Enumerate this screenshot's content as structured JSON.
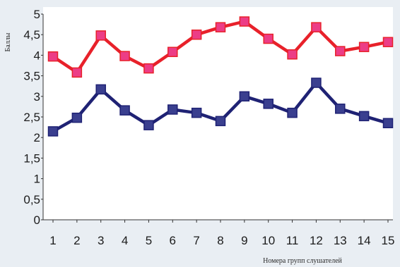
{
  "chart_data": {
    "type": "line",
    "title": "",
    "xlabel": "Номера групп слушателей",
    "ylabel": "Баллы",
    "x": [
      1,
      2,
      3,
      4,
      5,
      6,
      7,
      8,
      9,
      10,
      11,
      12,
      13,
      14,
      15
    ],
    "ylim": [
      0,
      5
    ],
    "yticks": [
      "0",
      "0,5",
      "1",
      "1,5",
      "2",
      "2,5",
      "3",
      "3,5",
      "4",
      "4,5",
      "5"
    ],
    "grid": false,
    "legend": "none",
    "series": [
      {
        "color": "#e8212a",
        "marker_color": "#ec3d86",
        "marker": "square",
        "values": [
          3.97,
          3.58,
          4.48,
          3.98,
          3.68,
          4.08,
          4.5,
          4.68,
          4.82,
          4.4,
          4.02,
          4.68,
          4.1,
          4.2,
          4.32
        ]
      },
      {
        "color": "#1f2274",
        "marker_color": "#3a3f8f",
        "marker": "square",
        "values": [
          2.15,
          2.48,
          3.17,
          2.66,
          2.3,
          2.68,
          2.6,
          2.4,
          3.0,
          2.82,
          2.6,
          3.33,
          2.7,
          2.52,
          2.35
        ]
      }
    ]
  }
}
